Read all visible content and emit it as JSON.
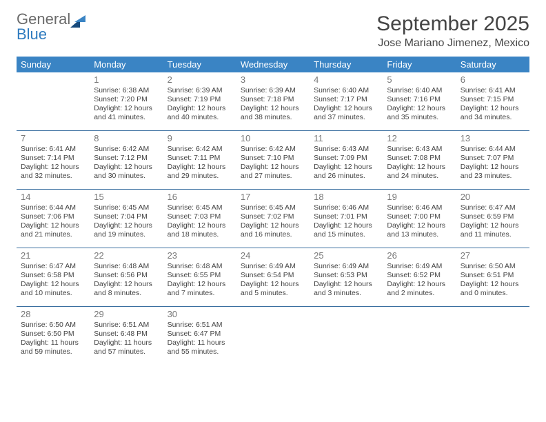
{
  "logo": {
    "part1": "General",
    "part2": "Blue"
  },
  "title": {
    "month": "September 2025",
    "location": "Jose Mariano Jimenez, Mexico"
  },
  "colors": {
    "header_bg": "#3a84c4",
    "header_fg": "#ffffff",
    "rule": "#3a6fa0",
    "text": "#444444",
    "logo_gray": "#6b6b6b",
    "logo_blue": "#2f7bbf",
    "logo_dark": "#174a7c"
  },
  "weekdays": [
    "Sunday",
    "Monday",
    "Tuesday",
    "Wednesday",
    "Thursday",
    "Friday",
    "Saturday"
  ],
  "weeks": [
    [
      null,
      {
        "n": "1",
        "sr": "Sunrise: 6:38 AM",
        "ss": "Sunset: 7:20 PM",
        "d1": "Daylight: 12 hours",
        "d2": "and 41 minutes."
      },
      {
        "n": "2",
        "sr": "Sunrise: 6:39 AM",
        "ss": "Sunset: 7:19 PM",
        "d1": "Daylight: 12 hours",
        "d2": "and 40 minutes."
      },
      {
        "n": "3",
        "sr": "Sunrise: 6:39 AM",
        "ss": "Sunset: 7:18 PM",
        "d1": "Daylight: 12 hours",
        "d2": "and 38 minutes."
      },
      {
        "n": "4",
        "sr": "Sunrise: 6:40 AM",
        "ss": "Sunset: 7:17 PM",
        "d1": "Daylight: 12 hours",
        "d2": "and 37 minutes."
      },
      {
        "n": "5",
        "sr": "Sunrise: 6:40 AM",
        "ss": "Sunset: 7:16 PM",
        "d1": "Daylight: 12 hours",
        "d2": "and 35 minutes."
      },
      {
        "n": "6",
        "sr": "Sunrise: 6:41 AM",
        "ss": "Sunset: 7:15 PM",
        "d1": "Daylight: 12 hours",
        "d2": "and 34 minutes."
      }
    ],
    [
      {
        "n": "7",
        "sr": "Sunrise: 6:41 AM",
        "ss": "Sunset: 7:14 PM",
        "d1": "Daylight: 12 hours",
        "d2": "and 32 minutes."
      },
      {
        "n": "8",
        "sr": "Sunrise: 6:42 AM",
        "ss": "Sunset: 7:12 PM",
        "d1": "Daylight: 12 hours",
        "d2": "and 30 minutes."
      },
      {
        "n": "9",
        "sr": "Sunrise: 6:42 AM",
        "ss": "Sunset: 7:11 PM",
        "d1": "Daylight: 12 hours",
        "d2": "and 29 minutes."
      },
      {
        "n": "10",
        "sr": "Sunrise: 6:42 AM",
        "ss": "Sunset: 7:10 PM",
        "d1": "Daylight: 12 hours",
        "d2": "and 27 minutes."
      },
      {
        "n": "11",
        "sr": "Sunrise: 6:43 AM",
        "ss": "Sunset: 7:09 PM",
        "d1": "Daylight: 12 hours",
        "d2": "and 26 minutes."
      },
      {
        "n": "12",
        "sr": "Sunrise: 6:43 AM",
        "ss": "Sunset: 7:08 PM",
        "d1": "Daylight: 12 hours",
        "d2": "and 24 minutes."
      },
      {
        "n": "13",
        "sr": "Sunrise: 6:44 AM",
        "ss": "Sunset: 7:07 PM",
        "d1": "Daylight: 12 hours",
        "d2": "and 23 minutes."
      }
    ],
    [
      {
        "n": "14",
        "sr": "Sunrise: 6:44 AM",
        "ss": "Sunset: 7:06 PM",
        "d1": "Daylight: 12 hours",
        "d2": "and 21 minutes."
      },
      {
        "n": "15",
        "sr": "Sunrise: 6:45 AM",
        "ss": "Sunset: 7:04 PM",
        "d1": "Daylight: 12 hours",
        "d2": "and 19 minutes."
      },
      {
        "n": "16",
        "sr": "Sunrise: 6:45 AM",
        "ss": "Sunset: 7:03 PM",
        "d1": "Daylight: 12 hours",
        "d2": "and 18 minutes."
      },
      {
        "n": "17",
        "sr": "Sunrise: 6:45 AM",
        "ss": "Sunset: 7:02 PM",
        "d1": "Daylight: 12 hours",
        "d2": "and 16 minutes."
      },
      {
        "n": "18",
        "sr": "Sunrise: 6:46 AM",
        "ss": "Sunset: 7:01 PM",
        "d1": "Daylight: 12 hours",
        "d2": "and 15 minutes."
      },
      {
        "n": "19",
        "sr": "Sunrise: 6:46 AM",
        "ss": "Sunset: 7:00 PM",
        "d1": "Daylight: 12 hours",
        "d2": "and 13 minutes."
      },
      {
        "n": "20",
        "sr": "Sunrise: 6:47 AM",
        "ss": "Sunset: 6:59 PM",
        "d1": "Daylight: 12 hours",
        "d2": "and 11 minutes."
      }
    ],
    [
      {
        "n": "21",
        "sr": "Sunrise: 6:47 AM",
        "ss": "Sunset: 6:58 PM",
        "d1": "Daylight: 12 hours",
        "d2": "and 10 minutes."
      },
      {
        "n": "22",
        "sr": "Sunrise: 6:48 AM",
        "ss": "Sunset: 6:56 PM",
        "d1": "Daylight: 12 hours",
        "d2": "and 8 minutes."
      },
      {
        "n": "23",
        "sr": "Sunrise: 6:48 AM",
        "ss": "Sunset: 6:55 PM",
        "d1": "Daylight: 12 hours",
        "d2": "and 7 minutes."
      },
      {
        "n": "24",
        "sr": "Sunrise: 6:49 AM",
        "ss": "Sunset: 6:54 PM",
        "d1": "Daylight: 12 hours",
        "d2": "and 5 minutes."
      },
      {
        "n": "25",
        "sr": "Sunrise: 6:49 AM",
        "ss": "Sunset: 6:53 PM",
        "d1": "Daylight: 12 hours",
        "d2": "and 3 minutes."
      },
      {
        "n": "26",
        "sr": "Sunrise: 6:49 AM",
        "ss": "Sunset: 6:52 PM",
        "d1": "Daylight: 12 hours",
        "d2": "and 2 minutes."
      },
      {
        "n": "27",
        "sr": "Sunrise: 6:50 AM",
        "ss": "Sunset: 6:51 PM",
        "d1": "Daylight: 12 hours",
        "d2": "and 0 minutes."
      }
    ],
    [
      {
        "n": "28",
        "sr": "Sunrise: 6:50 AM",
        "ss": "Sunset: 6:50 PM",
        "d1": "Daylight: 11 hours",
        "d2": "and 59 minutes."
      },
      {
        "n": "29",
        "sr": "Sunrise: 6:51 AM",
        "ss": "Sunset: 6:48 PM",
        "d1": "Daylight: 11 hours",
        "d2": "and 57 minutes."
      },
      {
        "n": "30",
        "sr": "Sunrise: 6:51 AM",
        "ss": "Sunset: 6:47 PM",
        "d1": "Daylight: 11 hours",
        "d2": "and 55 minutes."
      },
      null,
      null,
      null,
      null
    ]
  ]
}
